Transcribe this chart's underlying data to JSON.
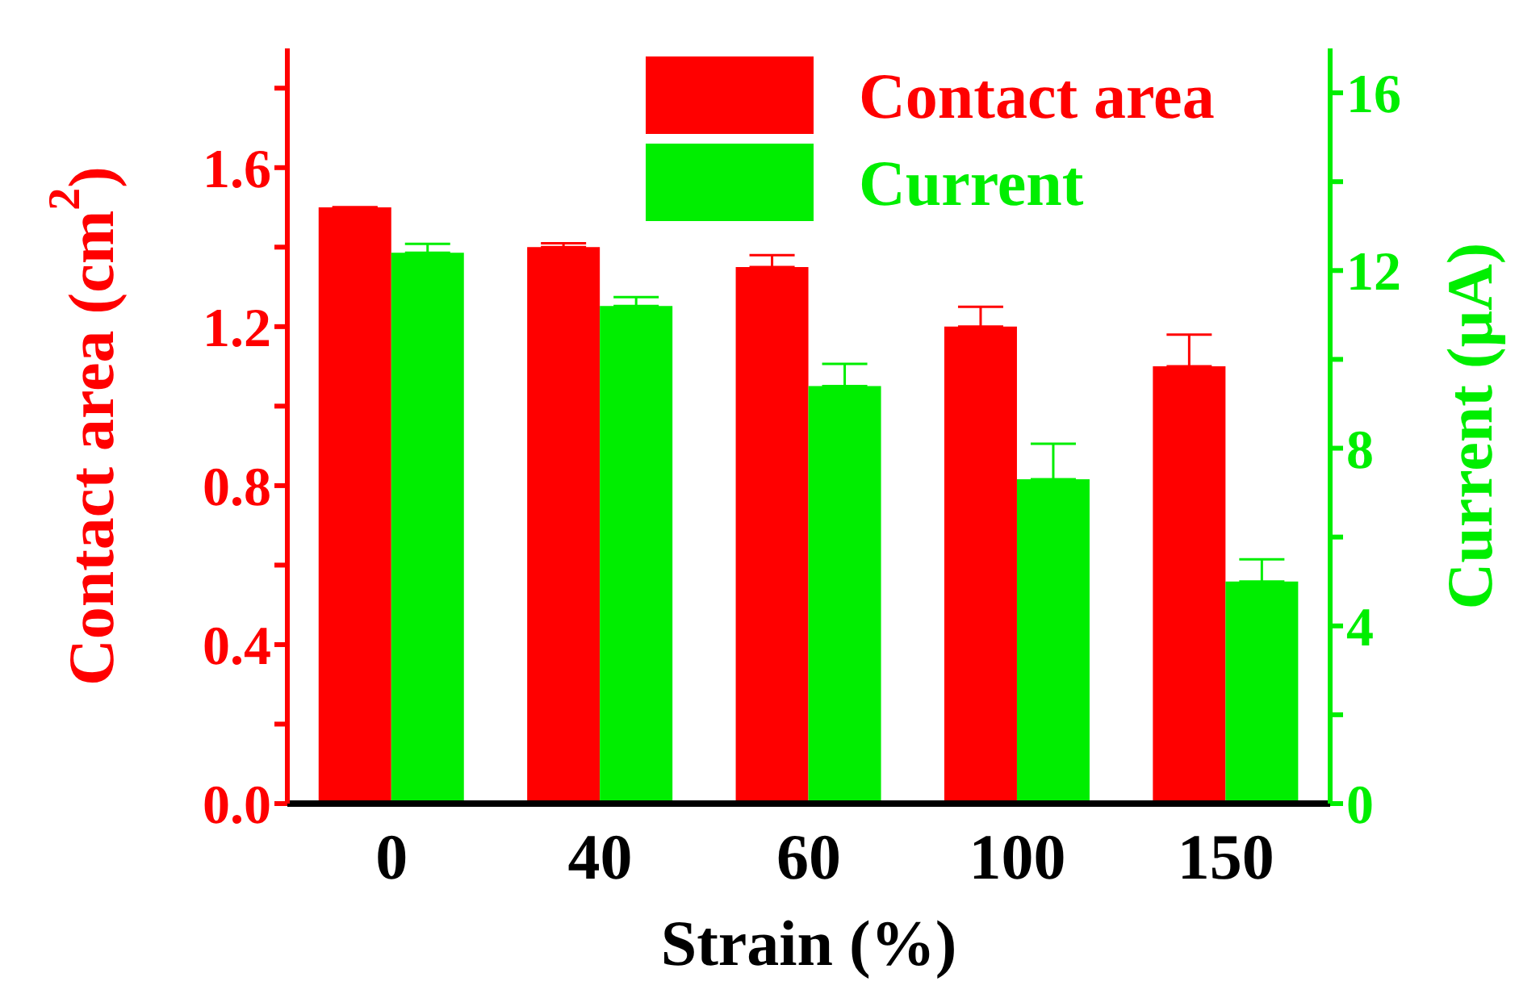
{
  "chart_data": {
    "type": "bar",
    "xlabel": "Strain (%)",
    "ylabel": "Contact area (cm$^{2}$)",
    "y2label": "Current (μA)",
    "categories": [
      "0",
      "40",
      "60",
      "100",
      "150"
    ],
    "series": [
      {
        "name": "Contact area",
        "color": "#ff0000",
        "values": [
          1.5,
          1.4,
          1.35,
          1.2,
          1.1
        ],
        "errors": [
          null,
          0.01,
          0.03,
          0.05,
          0.08
        ]
      },
      {
        "name": "Current",
        "color": "#00ee00",
        "axis": "y2",
        "values": [
          12.4,
          11.2,
          9.4,
          7.3,
          5.0
        ],
        "errors": [
          0.2,
          0.2,
          0.5,
          0.8,
          0.5
        ]
      }
    ],
    "ylim": [
      0,
      1.9
    ],
    "yticks": [
      {
        "value": 0,
        "label": "0.0"
      },
      {
        "value": 0.2,
        "label": null
      },
      {
        "value": 0.4,
        "label": "0.4"
      },
      {
        "value": 0.6,
        "label": null
      },
      {
        "value": 0.8,
        "label": "0.8"
      },
      {
        "value": 1.0,
        "label": null
      },
      {
        "value": 1.2,
        "label": "1.2"
      },
      {
        "value": 1.4,
        "label": null
      },
      {
        "value": 1.6,
        "label": "1.6"
      },
      {
        "value": 1.8,
        "label": null
      }
    ],
    "y2lim": [
      0,
      17
    ],
    "y2ticks": [
      0,
      {
        "value": 2,
        "label": null
      },
      4,
      {
        "value": 6,
        "label": null
      },
      8,
      {
        "value": 10,
        "label": null
      },
      12,
      {
        "value": 14,
        "label": null
      },
      16
    ],
    "legend": "top right",
    "grid": false
  }
}
